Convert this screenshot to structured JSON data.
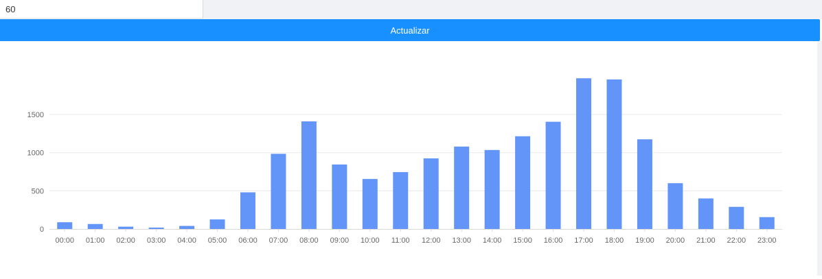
{
  "controls": {
    "interval_value": "60",
    "update_label": "Actualizar"
  },
  "colors": {
    "button": "#1890ff",
    "bar": "#6395f9",
    "grid": "#e8e8e8",
    "axis": "#d9d9d9",
    "tick_text": "#666666"
  },
  "chart_data": {
    "type": "bar",
    "categories": [
      "00:00",
      "01:00",
      "02:00",
      "03:00",
      "04:00",
      "05:00",
      "06:00",
      "07:00",
      "08:00",
      "09:00",
      "10:00",
      "11:00",
      "12:00",
      "13:00",
      "14:00",
      "15:00",
      "16:00",
      "17:00",
      "18:00",
      "19:00",
      "20:00",
      "21:00",
      "22:00",
      "23:00"
    ],
    "values": [
      88,
      65,
      30,
      18,
      40,
      125,
      480,
      985,
      1410,
      845,
      655,
      745,
      925,
      1080,
      1035,
      1215,
      1405,
      1975,
      1960,
      1175,
      600,
      400,
      290,
      155
    ],
    "yticks": [
      0,
      500,
      1000,
      1500
    ],
    "ylim": [
      0,
      2000
    ],
    "grid": true,
    "legend": "none"
  }
}
